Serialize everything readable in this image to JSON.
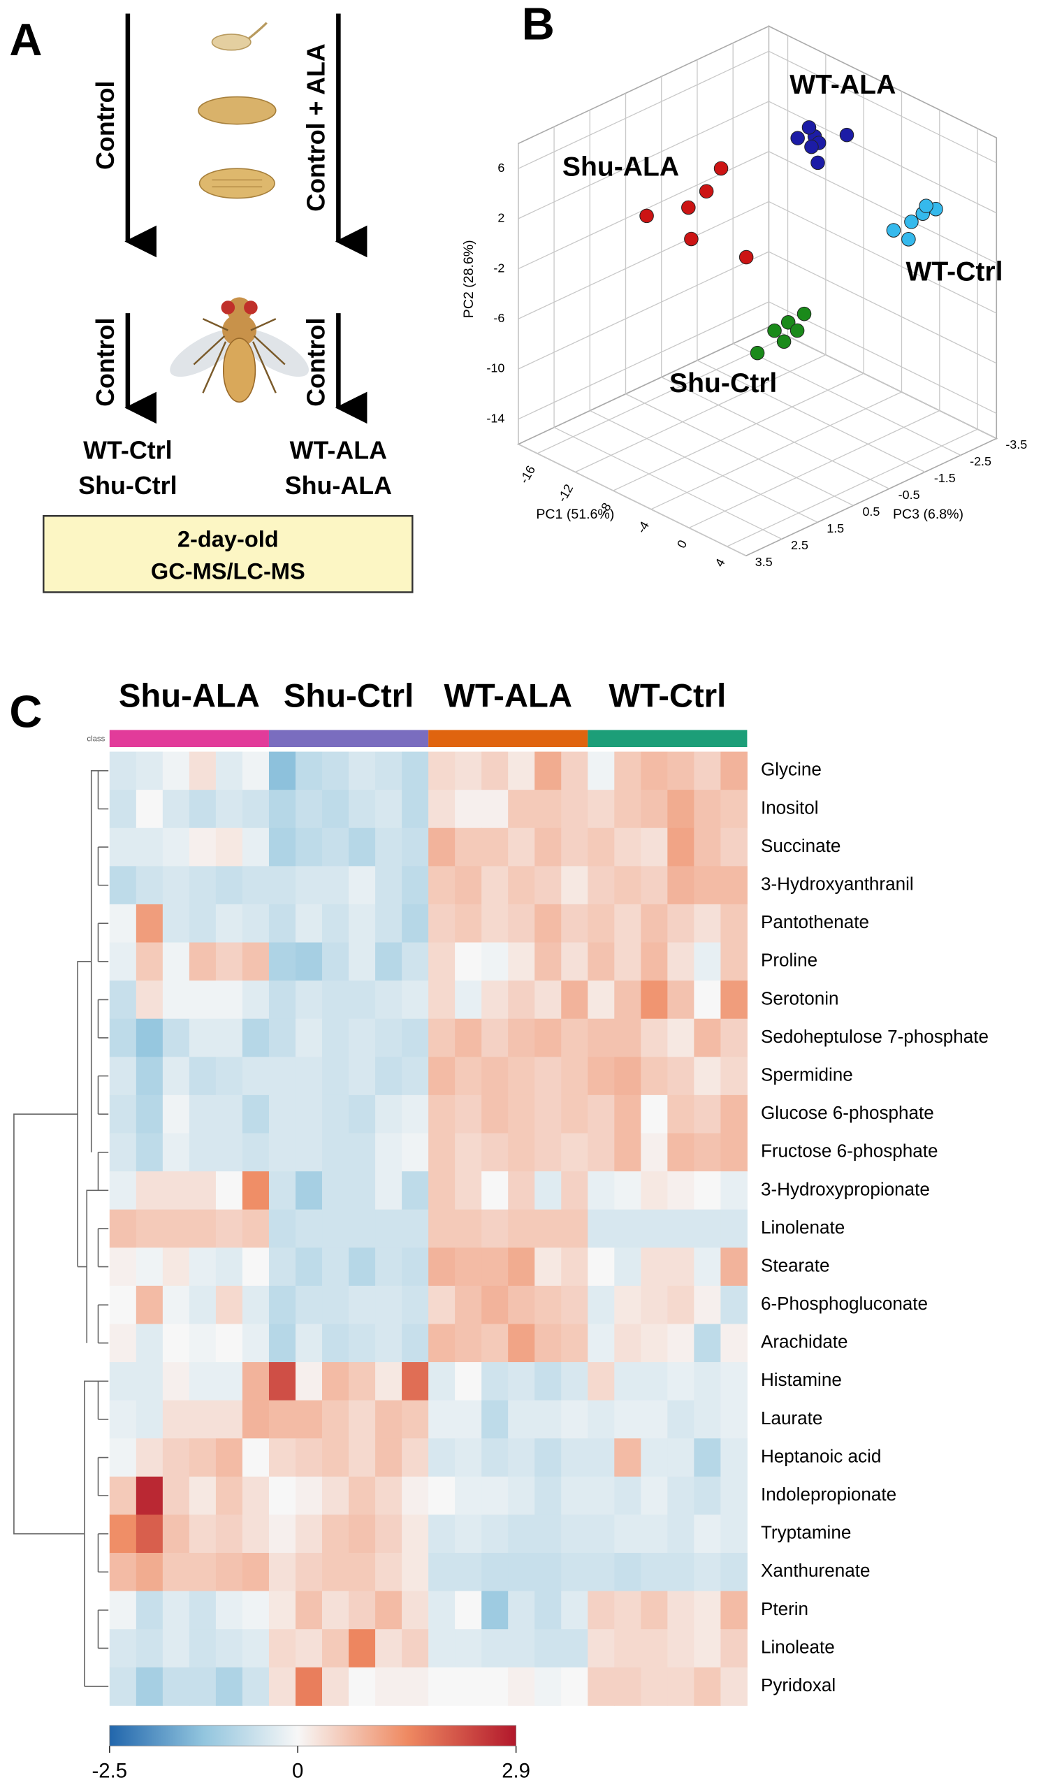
{
  "panels": {
    "a": "A",
    "b": "B",
    "c": "C"
  },
  "diagram": {
    "arrows": [
      "Control",
      "Control + ALA",
      "Control",
      "Control"
    ],
    "groups": [
      [
        "WT-Ctrl",
        "Shu-Ctrl"
      ],
      [
        "WT-ALA",
        "Shu-ALA"
      ]
    ],
    "box": [
      "2-day-old",
      "GC-MS/LC-MS"
    ]
  },
  "chart_data": [
    {
      "type": "scatter3d",
      "x_label": "PC1 (51.6%)",
      "y_label": "PC2 (28.6%)",
      "z_label": "PC3 (6.8%)",
      "xlim": [
        -18,
        6
      ],
      "ylim": [
        -16,
        8
      ],
      "zlim": [
        -3.5,
        3.5
      ],
      "xticks": [
        -16,
        -12,
        -8,
        -4,
        0,
        4
      ],
      "yticks": [
        -14,
        -10,
        -6,
        -2,
        2,
        6
      ],
      "zticks": [
        -3.5,
        -2.5,
        -1.5,
        -0.5,
        0.5,
        1.5,
        2.5,
        3.5
      ],
      "series": [
        {
          "name": "WT-ALA",
          "color": "#1c1ca6",
          "x": [
            -7.5,
            -9.3,
            -8.1,
            -6.3,
            -4.5,
            -8.6,
            -6.8
          ],
          "y": [
            5.1,
            4.3,
            5.6,
            5.3,
            6.2,
            3.6,
            3.4
          ],
          "z": [
            -2,
            -2,
            -2,
            -1.8,
            -2.1,
            -2.2,
            -1.9
          ]
        },
        {
          "name": "Shu-ALA",
          "color": "#cc1414",
          "x": [
            -6.06,
            -7.6,
            -9.5,
            -13.9,
            -9.2,
            -3.4
          ],
          "y": [
            7.1,
            4.7,
            2.7,
            0.4,
            0.3,
            1.0
          ],
          "z": [
            1,
            1,
            1,
            1,
            1,
            1
          ]
        },
        {
          "name": "WT-Ctrl",
          "color": "#35b9ec",
          "x": [
            0.8,
            2.0,
            3.0,
            -0.7,
            0.5,
            1.6
          ],
          "y": [
            0.7,
            1.8,
            2.4,
            -0.4,
            -0.8,
            2.0
          ],
          "z": [
            -2.5,
            -2.5,
            -2.6,
            -2.4,
            -2.5,
            -2.7
          ]
        },
        {
          "name": "Shu-Ctrl",
          "color": "#1a8a1a",
          "x": [
            -6.0,
            -4.2,
            -2.75,
            -1.07,
            -1.8,
            -3.2
          ],
          "y": [
            -8.95,
            -6.5,
            -5.3,
            -4.0,
            -5.6,
            -7.0
          ],
          "z": [
            0,
            0,
            0,
            0,
            0,
            0
          ]
        }
      ]
    },
    {
      "type": "heatmap",
      "class_label": "class",
      "groups": [
        {
          "name": "Shu-ALA",
          "color": "#e23b9a"
        },
        {
          "name": "Shu-Ctrl",
          "color": "#7a6dbf"
        },
        {
          "name": "WT-ALA",
          "color": "#e0640f"
        },
        {
          "name": "WT-Ctrl",
          "color": "#1c9e78"
        }
      ],
      "rows": [
        "Glycine",
        "Inositol",
        "Succinate",
        "3-Hydroxyanthranil",
        "Pantothenate",
        "Proline",
        "Serotonin",
        "Sedoheptulose 7-phosphate",
        "Spermidine",
        "Glucose 6-phosphate",
        "Fructose 6-phosphate",
        "3-Hydroxypropionate",
        "Linolenate",
        "Stearate",
        "6-Phosphogluconate",
        "Arachidate",
        "Histamine",
        "Laurate",
        "Heptanoic acid",
        "Indolepropionate",
        "Tryptamine",
        "Xanthurenate",
        "Pterin",
        "Linoleate",
        "Pyridoxal"
      ],
      "values": [
        [
          -0.4,
          -0.3,
          -0.1,
          0.3,
          -0.3,
          -0.1,
          -1.3,
          -0.7,
          -0.6,
          -0.4,
          -0.5,
          -0.7,
          0.4,
          0.3,
          0.5,
          0.2,
          1.0,
          0.5,
          -0.1,
          0.6,
          0.8,
          0.7,
          0.5,
          0.9
        ],
        [
          -0.5,
          0,
          -0.4,
          -0.6,
          -0.4,
          -0.5,
          -0.8,
          -0.6,
          -0.7,
          -0.5,
          -0.4,
          -0.7,
          0.3,
          0.1,
          0.1,
          0.6,
          0.6,
          0.5,
          0.4,
          0.6,
          0.7,
          1.0,
          0.7,
          0.6
        ],
        [
          -0.3,
          -0.3,
          -0.2,
          0.1,
          0.2,
          -0.2,
          -0.9,
          -0.7,
          -0.6,
          -0.8,
          -0.5,
          -0.6,
          0.9,
          0.6,
          0.6,
          0.4,
          0.7,
          0.5,
          0.6,
          0.4,
          0.3,
          1.1,
          0.7,
          0.5
        ],
        [
          -0.7,
          -0.5,
          -0.4,
          -0.5,
          -0.6,
          -0.5,
          -0.5,
          -0.4,
          -0.4,
          -0.2,
          -0.5,
          -0.7,
          0.6,
          0.7,
          0.4,
          0.6,
          0.5,
          0.2,
          0.5,
          0.6,
          0.5,
          0.9,
          0.8,
          0.8
        ],
        [
          -0.1,
          1.2,
          -0.4,
          -0.5,
          -0.3,
          -0.4,
          -0.6,
          -0.3,
          -0.5,
          -0.3,
          -0.5,
          -0.8,
          0.5,
          0.6,
          0.4,
          0.5,
          0.8,
          0.5,
          0.6,
          0.4,
          0.7,
          0.5,
          0.3,
          0.6
        ],
        [
          -0.2,
          0.6,
          -0.1,
          0.7,
          0.5,
          0.7,
          -0.9,
          -1.0,
          -0.6,
          -0.3,
          -0.8,
          -0.5,
          0.4,
          0,
          -0.1,
          0.2,
          0.7,
          0.3,
          0.7,
          0.4,
          0.8,
          0.3,
          -0.2,
          0.6
        ],
        [
          -0.6,
          0.3,
          -0.1,
          -0.1,
          -0.1,
          -0.3,
          -0.6,
          -0.4,
          -0.5,
          -0.5,
          -0.4,
          -0.3,
          0.4,
          -0.2,
          0.3,
          0.5,
          0.3,
          0.9,
          0.2,
          0.7,
          1.3,
          0.7,
          0,
          1.2
        ],
        [
          -0.7,
          -1.2,
          -0.6,
          -0.3,
          -0.3,
          -0.8,
          -0.6,
          -0.3,
          -0.5,
          -0.4,
          -0.5,
          -0.6,
          0.6,
          0.8,
          0.5,
          0.7,
          0.8,
          0.6,
          0.7,
          0.7,
          0.4,
          0.2,
          0.8,
          0.5
        ],
        [
          -0.4,
          -0.9,
          -0.3,
          -0.6,
          -0.5,
          -0.4,
          -0.4,
          -0.4,
          -0.5,
          -0.4,
          -0.6,
          -0.5,
          0.8,
          0.6,
          0.7,
          0.6,
          0.5,
          0.6,
          0.8,
          0.9,
          0.6,
          0.5,
          0.2,
          0.4
        ],
        [
          -0.5,
          -0.8,
          -0.1,
          -0.4,
          -0.4,
          -0.7,
          -0.4,
          -0.4,
          -0.5,
          -0.6,
          -0.3,
          -0.2,
          0.6,
          0.5,
          0.7,
          0.6,
          0.5,
          0.6,
          0.5,
          0.8,
          0,
          0.6,
          0.5,
          0.8
        ],
        [
          -0.4,
          -0.7,
          -0.2,
          -0.4,
          -0.4,
          -0.5,
          -0.4,
          -0.4,
          -0.5,
          -0.5,
          -0.2,
          -0.1,
          0.6,
          0.4,
          0.5,
          0.6,
          0.5,
          0.4,
          0.5,
          0.8,
          0.1,
          0.8,
          0.7,
          0.8
        ],
        [
          -0.2,
          0.3,
          0.3,
          0.3,
          0,
          1.4,
          -0.5,
          -1.0,
          -0.5,
          -0.5,
          -0.2,
          -0.7,
          0.6,
          0.4,
          0,
          0.5,
          -0.3,
          0.5,
          -0.2,
          -0.1,
          0.2,
          0.1,
          0,
          -0.2
        ],
        [
          0.7,
          0.6,
          0.6,
          0.6,
          0.5,
          0.6,
          -0.6,
          -0.5,
          -0.5,
          -0.5,
          -0.5,
          -0.5,
          0.6,
          0.6,
          0.5,
          0.6,
          0.6,
          0.6,
          -0.4,
          -0.4,
          -0.4,
          -0.4,
          -0.4,
          -0.4
        ],
        [
          0.1,
          -0.1,
          0.2,
          -0.2,
          -0.3,
          0,
          -0.5,
          -0.7,
          -0.5,
          -0.8,
          -0.5,
          -0.6,
          0.9,
          0.8,
          0.8,
          1.0,
          0.2,
          0.4,
          0,
          -0.3,
          0.3,
          0.3,
          -0.2,
          0.9
        ],
        [
          0,
          0.8,
          -0.1,
          -0.3,
          0.4,
          -0.3,
          -0.7,
          -0.5,
          -0.5,
          -0.4,
          -0.4,
          -0.5,
          0.4,
          0.7,
          0.9,
          0.7,
          0.6,
          0.5,
          -0.3,
          0.2,
          0.3,
          0.4,
          0.1,
          -0.5
        ],
        [
          0.1,
          -0.3,
          0,
          -0.1,
          0,
          -0.2,
          -0.8,
          -0.3,
          -0.6,
          -0.5,
          -0.4,
          -0.6,
          0.8,
          0.7,
          0.6,
          1.1,
          0.7,
          0.6,
          -0.2,
          0.3,
          0.2,
          0.1,
          -0.7,
          0.1
        ],
        [
          -0.3,
          -0.3,
          0.1,
          -0.2,
          -0.2,
          0.9,
          2.2,
          0.1,
          0.8,
          0.6,
          0.2,
          1.8,
          -0.3,
          0,
          -0.5,
          -0.4,
          -0.6,
          -0.4,
          0.4,
          -0.3,
          -0.3,
          -0.2,
          -0.3,
          -0.2
        ],
        [
          -0.2,
          -0.3,
          0.3,
          0.3,
          0.3,
          0.9,
          0.8,
          0.8,
          0.6,
          0.4,
          0.7,
          0.6,
          -0.2,
          -0.2,
          -0.7,
          -0.3,
          -0.3,
          -0.2,
          -0.3,
          -0.2,
          -0.2,
          -0.4,
          -0.3,
          -0.2
        ],
        [
          -0.1,
          0.3,
          0.5,
          0.6,
          0.8,
          0,
          0.4,
          0.5,
          0.6,
          0.4,
          0.7,
          0.4,
          -0.4,
          -0.3,
          -0.5,
          -0.4,
          -0.6,
          -0.4,
          -0.4,
          0.8,
          -0.3,
          -0.3,
          -0.8,
          -0.3
        ],
        [
          0.6,
          2.7,
          0.5,
          0.2,
          0.6,
          0.3,
          0,
          0.1,
          0.3,
          0.6,
          0.4,
          0.1,
          0,
          -0.2,
          -0.2,
          -0.3,
          -0.5,
          -0.3,
          -0.3,
          -0.4,
          -0.2,
          -0.4,
          -0.5,
          -0.3
        ],
        [
          1.4,
          2.0,
          0.7,
          0.4,
          0.5,
          0.3,
          0.1,
          0.3,
          0.6,
          0.7,
          0.5,
          0.2,
          -0.4,
          -0.3,
          -0.4,
          -0.5,
          -0.5,
          -0.4,
          -0.4,
          -0.3,
          -0.3,
          -0.4,
          -0.2,
          -0.3
        ],
        [
          0.8,
          1.0,
          0.6,
          0.6,
          0.7,
          0.8,
          0.3,
          0.5,
          0.6,
          0.6,
          0.4,
          0.2,
          -0.5,
          -0.5,
          -0.6,
          -0.6,
          -0.6,
          -0.5,
          -0.5,
          -0.6,
          -0.5,
          -0.5,
          -0.4,
          -0.5
        ],
        [
          -0.1,
          -0.6,
          -0.3,
          -0.5,
          -0.2,
          -0.1,
          0.2,
          0.7,
          0.3,
          0.5,
          0.8,
          0.3,
          -0.3,
          0,
          -1.1,
          -0.4,
          -0.6,
          -0.3,
          0.5,
          0.4,
          0.6,
          0.3,
          0.2,
          0.8
        ],
        [
          -0.4,
          -0.5,
          -0.3,
          -0.5,
          -0.4,
          -0.3,
          0.4,
          0.3,
          0.6,
          1.5,
          0.3,
          0.5,
          -0.3,
          -0.3,
          -0.4,
          -0.4,
          -0.5,
          -0.5,
          0.3,
          0.4,
          0.4,
          0.3,
          0.2,
          0.5
        ],
        [
          -0.5,
          -1.0,
          -0.6,
          -0.6,
          -0.9,
          -0.5,
          0.3,
          1.6,
          0.3,
          0,
          0.1,
          0.1,
          0,
          0,
          0,
          0.1,
          -0.1,
          0,
          0.5,
          0.5,
          0.4,
          0.4,
          0.6,
          0.3
        ]
      ],
      "vlim": [
        -2.5,
        2.9
      ],
      "cticks": [
        -2.5,
        0,
        2.9
      ],
      "colors": [
        "#2166ac",
        "#92c5de",
        "#f7f7f7",
        "#ef8a62",
        "#b2182b"
      ]
    }
  ]
}
